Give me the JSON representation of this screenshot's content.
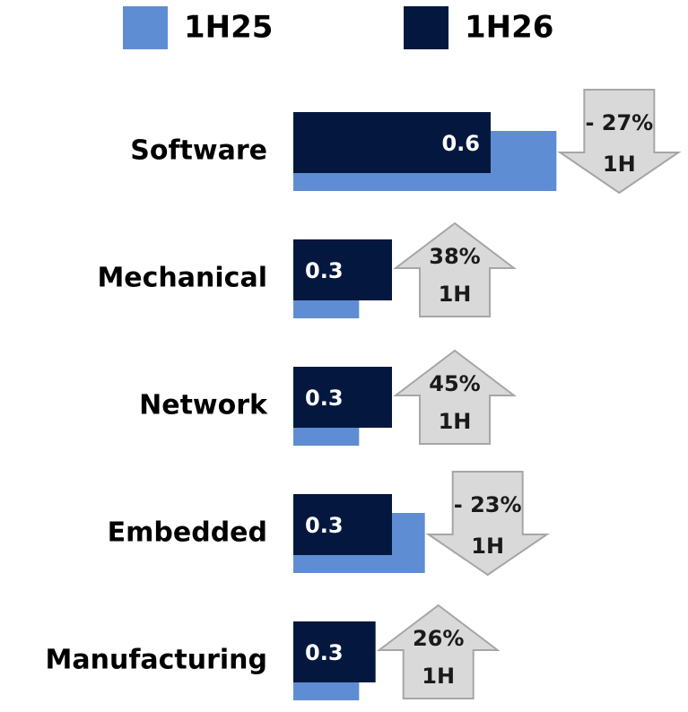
{
  "chart_data": {
    "type": "bar",
    "orientation": "horizontal",
    "categories": [
      "Software",
      "Mechanical",
      "Network",
      "Embedded",
      "Manufacturing"
    ],
    "series": [
      {
        "name": "1H25",
        "color": "#5f8dd3",
        "values": [
          0.8,
          0.2,
          0.2,
          0.4,
          0.2
        ]
      },
      {
        "name": "1H26",
        "color": "#04183f",
        "values": [
          0.6,
          0.3,
          0.3,
          0.3,
          0.25
        ],
        "value_labels": [
          "0.6",
          "0.3",
          "0.3",
          "0.3",
          "0.3"
        ]
      }
    ],
    "xlim": [
      0,
      1.2
    ],
    "changes": [
      {
        "label": "- 27%",
        "period": "1H",
        "direction": "down"
      },
      {
        "label": "38%",
        "period": "1H",
        "direction": "up"
      },
      {
        "label": "45%",
        "period": "1H",
        "direction": "up"
      },
      {
        "label": "- 23%",
        "period": "1H",
        "direction": "down"
      },
      {
        "label": "26%",
        "period": "1H",
        "direction": "up"
      }
    ]
  }
}
